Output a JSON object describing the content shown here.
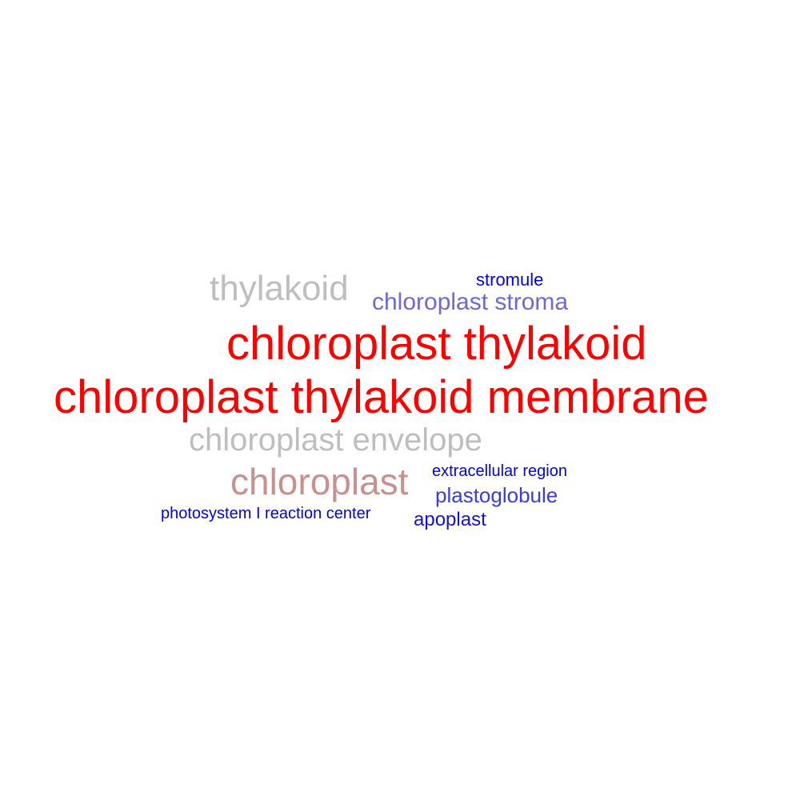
{
  "words": [
    {
      "key": "thylakoid",
      "text": "thylakoid",
      "color": "#bebebe"
    },
    {
      "key": "stromule",
      "text": "stromule",
      "color": "#0000ee"
    },
    {
      "key": "stroma",
      "text": "chloroplast stroma",
      "color": "#6a6ad2"
    },
    {
      "key": "chloro_thylakoid",
      "text": "chloroplast thylakoid",
      "color": "#ff0000"
    },
    {
      "key": "chloro_thyl_membrane",
      "text": "chloroplast thylakoid membrane",
      "color": "#ff0000"
    },
    {
      "key": "envelope",
      "text": "chloroplast envelope",
      "color": "#bebebe"
    },
    {
      "key": "chloroplast",
      "text": "chloroplast",
      "color": "#c99090"
    },
    {
      "key": "extracellular",
      "text": "extracellular region",
      "color": "#0000ee"
    },
    {
      "key": "plastoglobule",
      "text": "plastoglobule",
      "color": "#3a3ae8"
    },
    {
      "key": "photosystem",
      "text": "photosystem I reaction center",
      "color": "#0000ee"
    },
    {
      "key": "apoplast",
      "text": "apoplast",
      "color": "#0f0fe6"
    }
  ]
}
